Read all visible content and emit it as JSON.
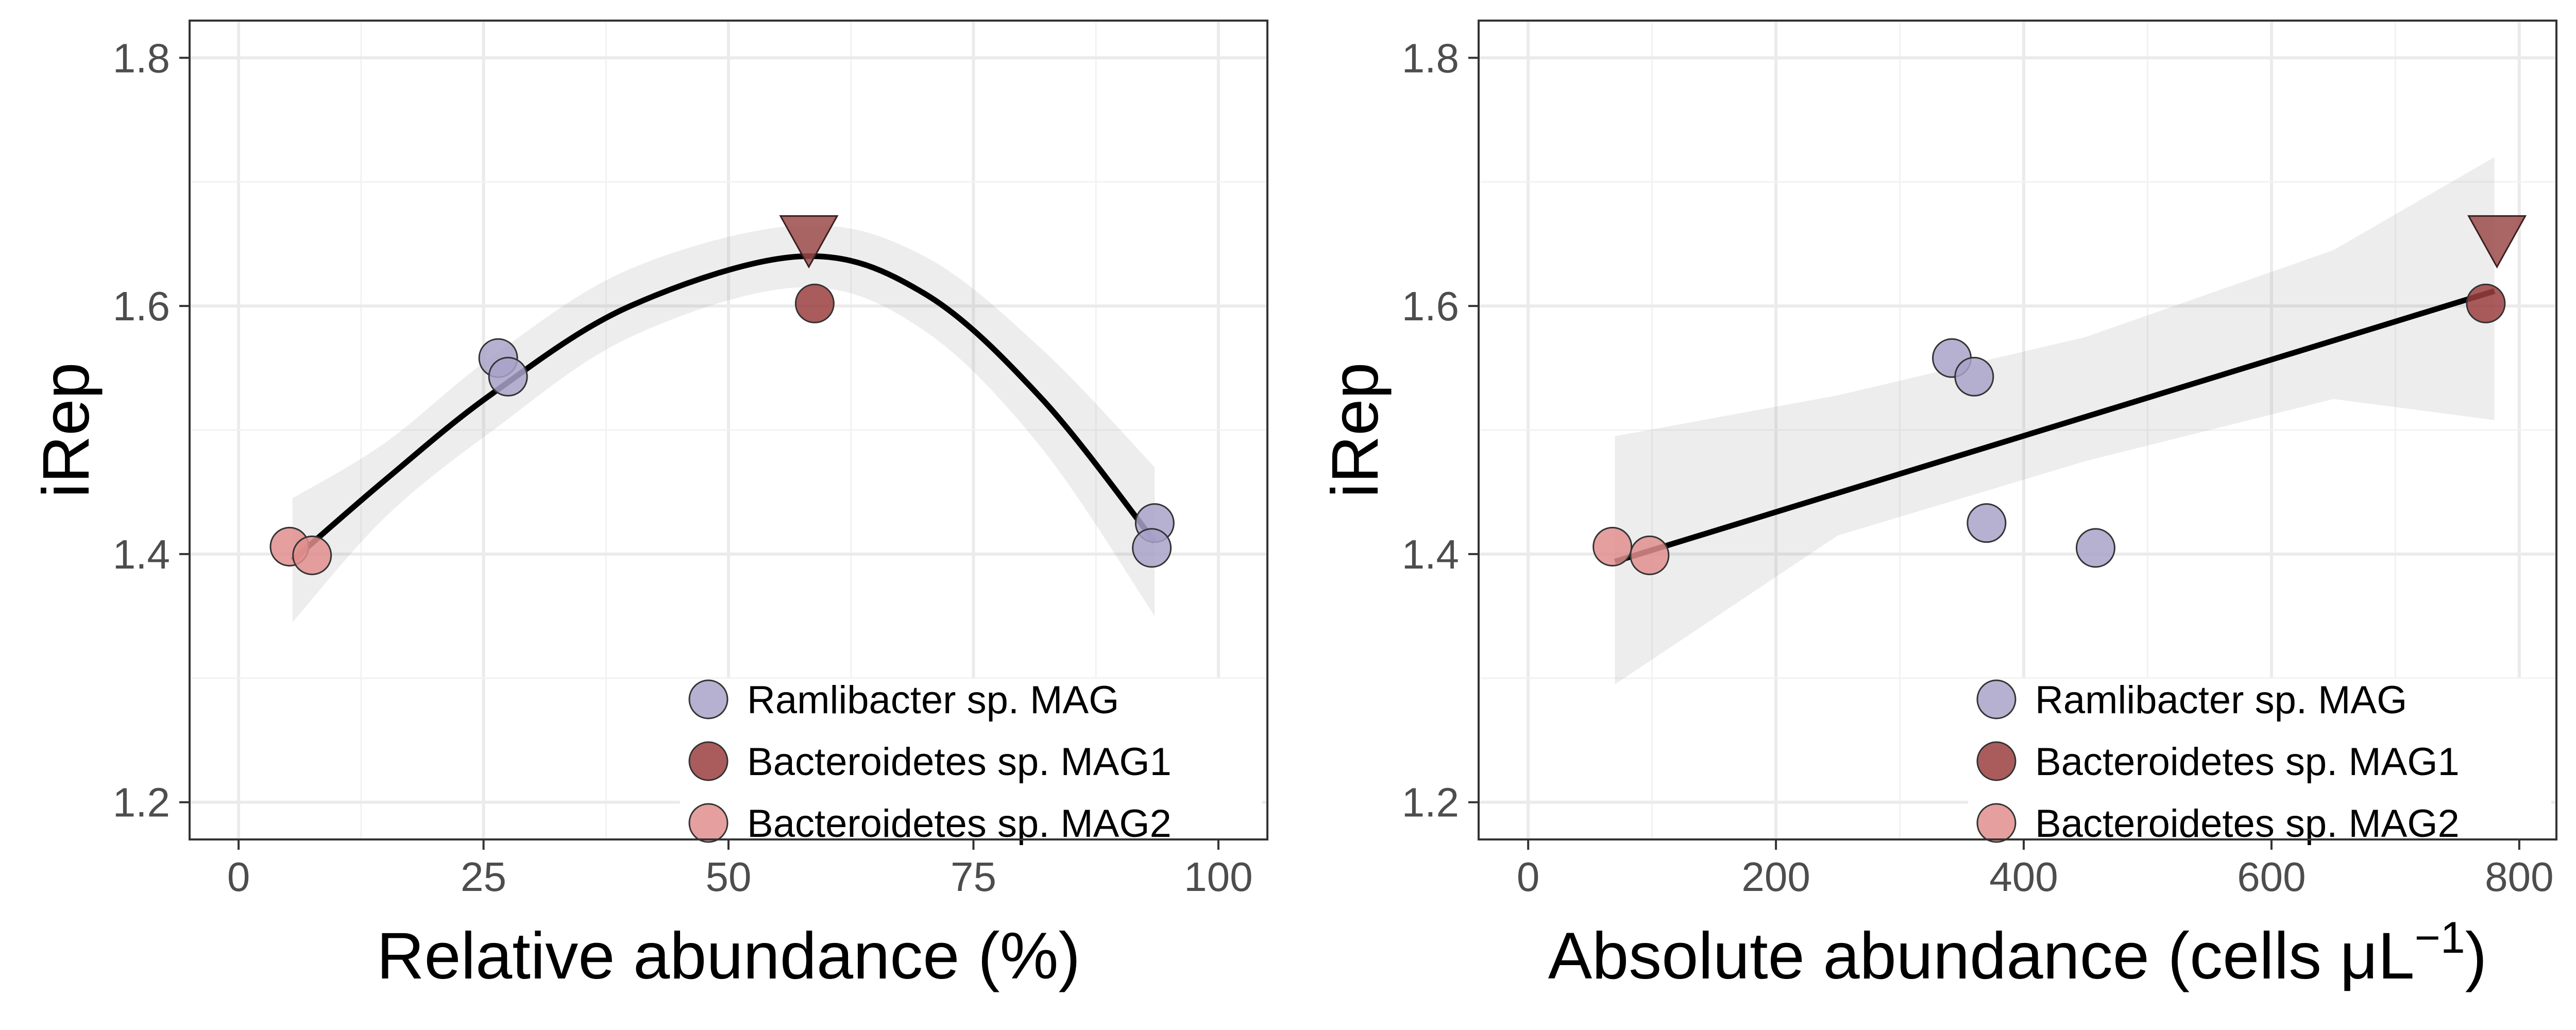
{
  "chart_data": [
    {
      "type": "scatter",
      "xlabel": "Relative abundance (%)",
      "ylabel": "iRep",
      "xlim": [
        -5,
        105
      ],
      "ylim": [
        1.17,
        1.83
      ],
      "xticks": [
        0,
        25,
        50,
        75,
        100
      ],
      "yticks": [
        1.2,
        1.4,
        1.6,
        1.8
      ],
      "xtick_labels": [
        "0",
        "25",
        "50",
        "75",
        "100"
      ],
      "ytick_labels": [
        "1.2",
        "1.4",
        "1.6",
        "1.8"
      ],
      "grid": true,
      "legend_position": "bottom-right",
      "fit": {
        "type": "quadratic",
        "points": [
          [
            5.5,
            1.395
          ],
          [
            15,
            1.46
          ],
          [
            26,
            1.53
          ],
          [
            40,
            1.6
          ],
          [
            57.5,
            1.64
          ],
          [
            70,
            1.61
          ],
          [
            82,
            1.525
          ],
          [
            93.5,
            1.41
          ]
        ],
        "ci_upper": [
          [
            5.5,
            1.445
          ],
          [
            15,
            1.49
          ],
          [
            26,
            1.56
          ],
          [
            40,
            1.63
          ],
          [
            57.5,
            1.665
          ],
          [
            70,
            1.64
          ],
          [
            82,
            1.565
          ],
          [
            93.5,
            1.47
          ]
        ],
        "ci_lower": [
          [
            5.5,
            1.345
          ],
          [
            15,
            1.43
          ],
          [
            26,
            1.5
          ],
          [
            40,
            1.575
          ],
          [
            57.5,
            1.615
          ],
          [
            70,
            1.58
          ],
          [
            82,
            1.485
          ],
          [
            93.5,
            1.35
          ]
        ]
      },
      "series": [
        {
          "name": "Ramlibacter sp. MAG",
          "color": "#a9a2c9",
          "marker": "circle",
          "points": [
            [
              26.5,
              1.558
            ],
            [
              27.5,
              1.543
            ],
            [
              93.5,
              1.425
            ],
            [
              93.2,
              1.405
            ]
          ]
        },
        {
          "name": "Bacteroidetes sp. MAG1",
          "color": "#9b3f3f",
          "marker": "circle",
          "points": [
            [
              58.8,
              1.602
            ]
          ]
        },
        {
          "name": "Bacteroidetes sp. MAG2",
          "color": "#e08e8e",
          "marker": "circle",
          "points": [
            [
              5.2,
              1.406
            ],
            [
              7.5,
              1.399
            ]
          ]
        }
      ],
      "extra_points": [
        {
          "marker": "triangle-down",
          "color": "#9b4a4a",
          "x": 58.2,
          "y": 1.652
        }
      ]
    },
    {
      "type": "scatter",
      "xlabel": "Absolute abundance (cells μL",
      "xlabel_superscript": "−1",
      "xlabel_suffix": ")",
      "ylabel": "iRep",
      "xlim": [
        -40,
        830
      ],
      "ylim": [
        1.17,
        1.83
      ],
      "xticks": [
        0,
        200,
        400,
        600,
        800
      ],
      "yticks": [
        1.2,
        1.4,
        1.6,
        1.8
      ],
      "xtick_labels": [
        "0",
        "200",
        "400",
        "600",
        "800"
      ],
      "ytick_labels": [
        "1.2",
        "1.4",
        "1.6",
        "1.8"
      ],
      "grid": true,
      "legend_position": "bottom-right",
      "fit": {
        "type": "linear",
        "points": [
          [
            70,
            1.394
          ],
          [
            780,
            1.612
          ]
        ],
        "ci_upper": [
          [
            70,
            1.495
          ],
          [
            250,
            1.528
          ],
          [
            450,
            1.575
          ],
          [
            650,
            1.645
          ],
          [
            780,
            1.72
          ]
        ],
        "ci_lower": [
          [
            70,
            1.295
          ],
          [
            250,
            1.415
          ],
          [
            450,
            1.475
          ],
          [
            650,
            1.525
          ],
          [
            780,
            1.508
          ]
        ]
      },
      "series": [
        {
          "name": "Ramlibacter sp. MAG",
          "color": "#a9a2c9",
          "marker": "circle",
          "points": [
            [
              342,
              1.558
            ],
            [
              360,
              1.543
            ],
            [
              370,
              1.425
            ],
            [
              458,
              1.405
            ]
          ]
        },
        {
          "name": "Bacteroidetes sp. MAG1",
          "color": "#9b3f3f",
          "marker": "circle",
          "points": [
            [
              773,
              1.602
            ]
          ]
        },
        {
          "name": "Bacteroidetes sp. MAG2",
          "color": "#e08e8e",
          "marker": "circle",
          "points": [
            [
              68,
              1.406
            ],
            [
              98,
              1.399
            ]
          ]
        }
      ],
      "extra_points": [
        {
          "marker": "triangle-down",
          "color": "#9b4a4a",
          "x": 782,
          "y": 1.652
        }
      ]
    }
  ]
}
